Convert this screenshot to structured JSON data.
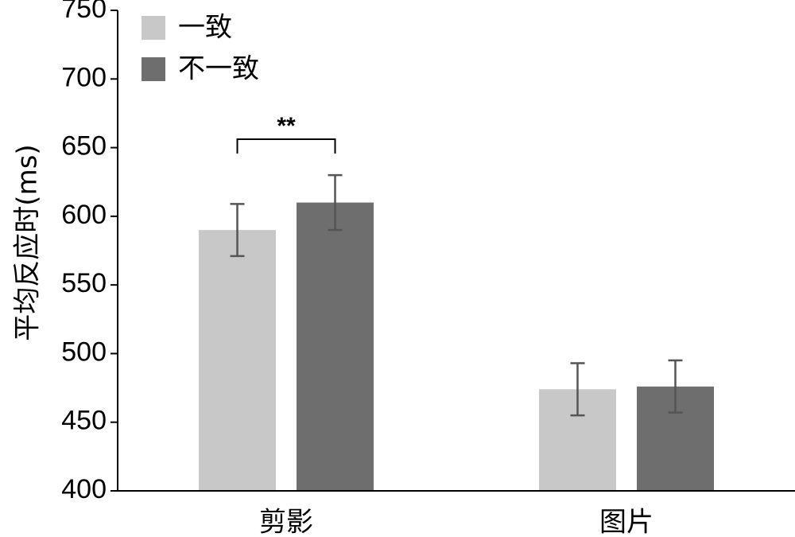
{
  "chart_data": {
    "type": "bar",
    "title": "",
    "xlabel": "",
    "ylabel": "平均反应时(ms)",
    "ylim": [
      400,
      750
    ],
    "yticks": [
      400,
      450,
      500,
      550,
      600,
      650,
      700,
      750
    ],
    "categories": [
      "剪影",
      "图片"
    ],
    "series": [
      {
        "name": "一致",
        "color": "#c8c8c8",
        "values": [
          590,
          474
        ],
        "error": [
          19,
          19
        ]
      },
      {
        "name": "不一致",
        "color": "#6e6e6e",
        "values": [
          610,
          476
        ],
        "error": [
          20,
          19
        ]
      }
    ],
    "significance": [
      {
        "category_index": 0,
        "label": "**"
      }
    ],
    "legend_position": "top-left",
    "grid": false
  }
}
